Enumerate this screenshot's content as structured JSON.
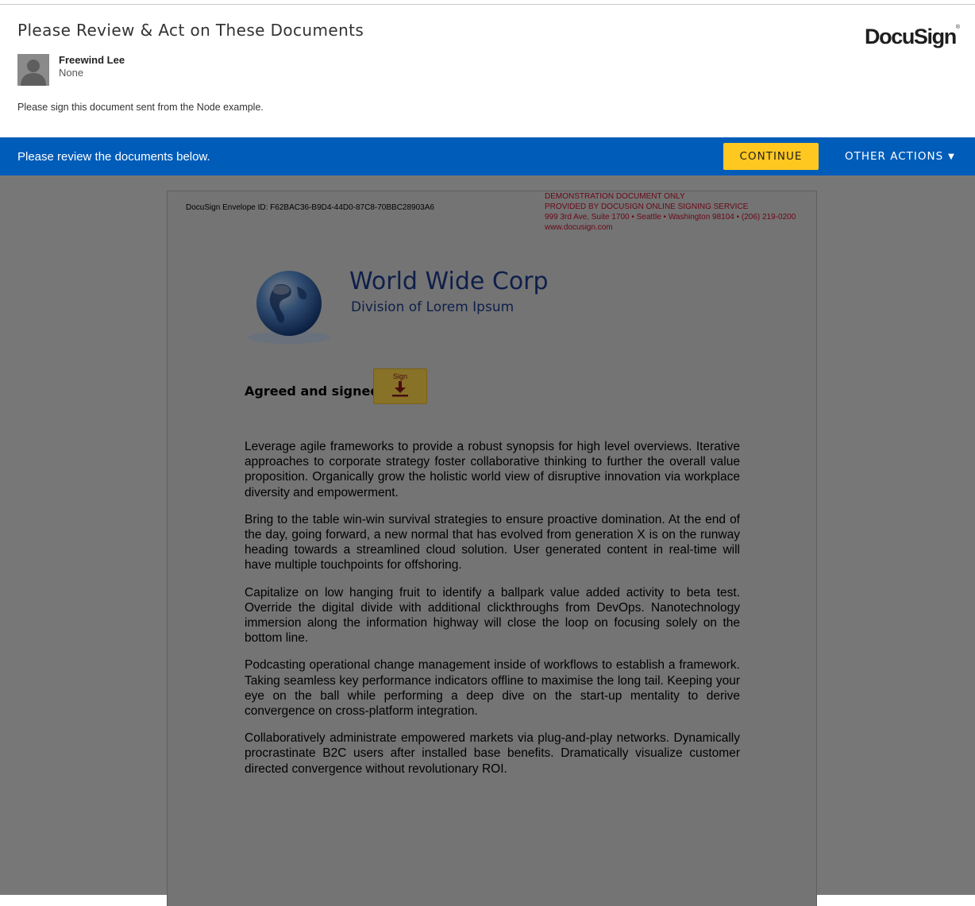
{
  "header": {
    "title": "Please Review & Act on These Documents",
    "logo_text": "DocuSign",
    "logo_mark": "®",
    "sender": {
      "name": "Freewind Lee",
      "subtitle": "None"
    },
    "message": "Please sign this document sent from the Node example."
  },
  "action_bar": {
    "text": "Please review the documents below.",
    "continue_label": "CONTINUE",
    "other_actions_label": "OTHER ACTIONS",
    "other_actions_caret": "▼",
    "color": "#005cb9",
    "continue_color": "#ffc820"
  },
  "document": {
    "envelope_id": "DocuSign Envelope ID: F62BAC36-B9D4-44D0-87C8-70BBC28903A6",
    "demo_lines": [
      "DEMONSTRATION DOCUMENT ONLY",
      "PROVIDED BY DOCUSIGN ONLINE SIGNING SERVICE",
      "999 3rd Ave, Suite 1700  • Seattle • Washington 98104 • (206) 219-0200",
      "www.docusign.com"
    ],
    "company_name": "World Wide Corp",
    "company_division": "Division of Lorem Ipsum",
    "agreed_label": "Agreed and signed:",
    "sign_tab_label": "Sign",
    "paragraphs": [
      "Leverage agile frameworks to provide a robust synopsis for high level overviews. Iterative approaches to corporate strategy foster collaborative thinking to further the overall value proposition. Organically grow the holistic world view of disruptive innovation via workplace diversity and empowerment.",
      "Bring to the table win-win survival strategies to ensure proactive domination. At the end of the day, going forward, a new normal that has evolved from generation X is on the runway heading towards a streamlined cloud solution. User generated content in real-time will have multiple touchpoints for offshoring.",
      "Capitalize on low hanging fruit to identify a ballpark value added activity to beta test. Override the digital divide with additional clickthroughs from DevOps. Nanotechnology immersion along the information highway will close the loop on focusing solely on the bottom line.",
      "Podcasting operational change management inside of workflows to establish a framework. Taking seamless key performance indicators offline to maximise the long tail. Keeping your eye on the ball while performing a deep dive on the start-up mentality to derive convergence on cross-platform integration.",
      "Collaboratively administrate empowered markets via plug-and-play networks. Dynamically procrastinate B2C users after installed base benefits. Dramatically visualize customer directed convergence without revolutionary ROI."
    ]
  }
}
